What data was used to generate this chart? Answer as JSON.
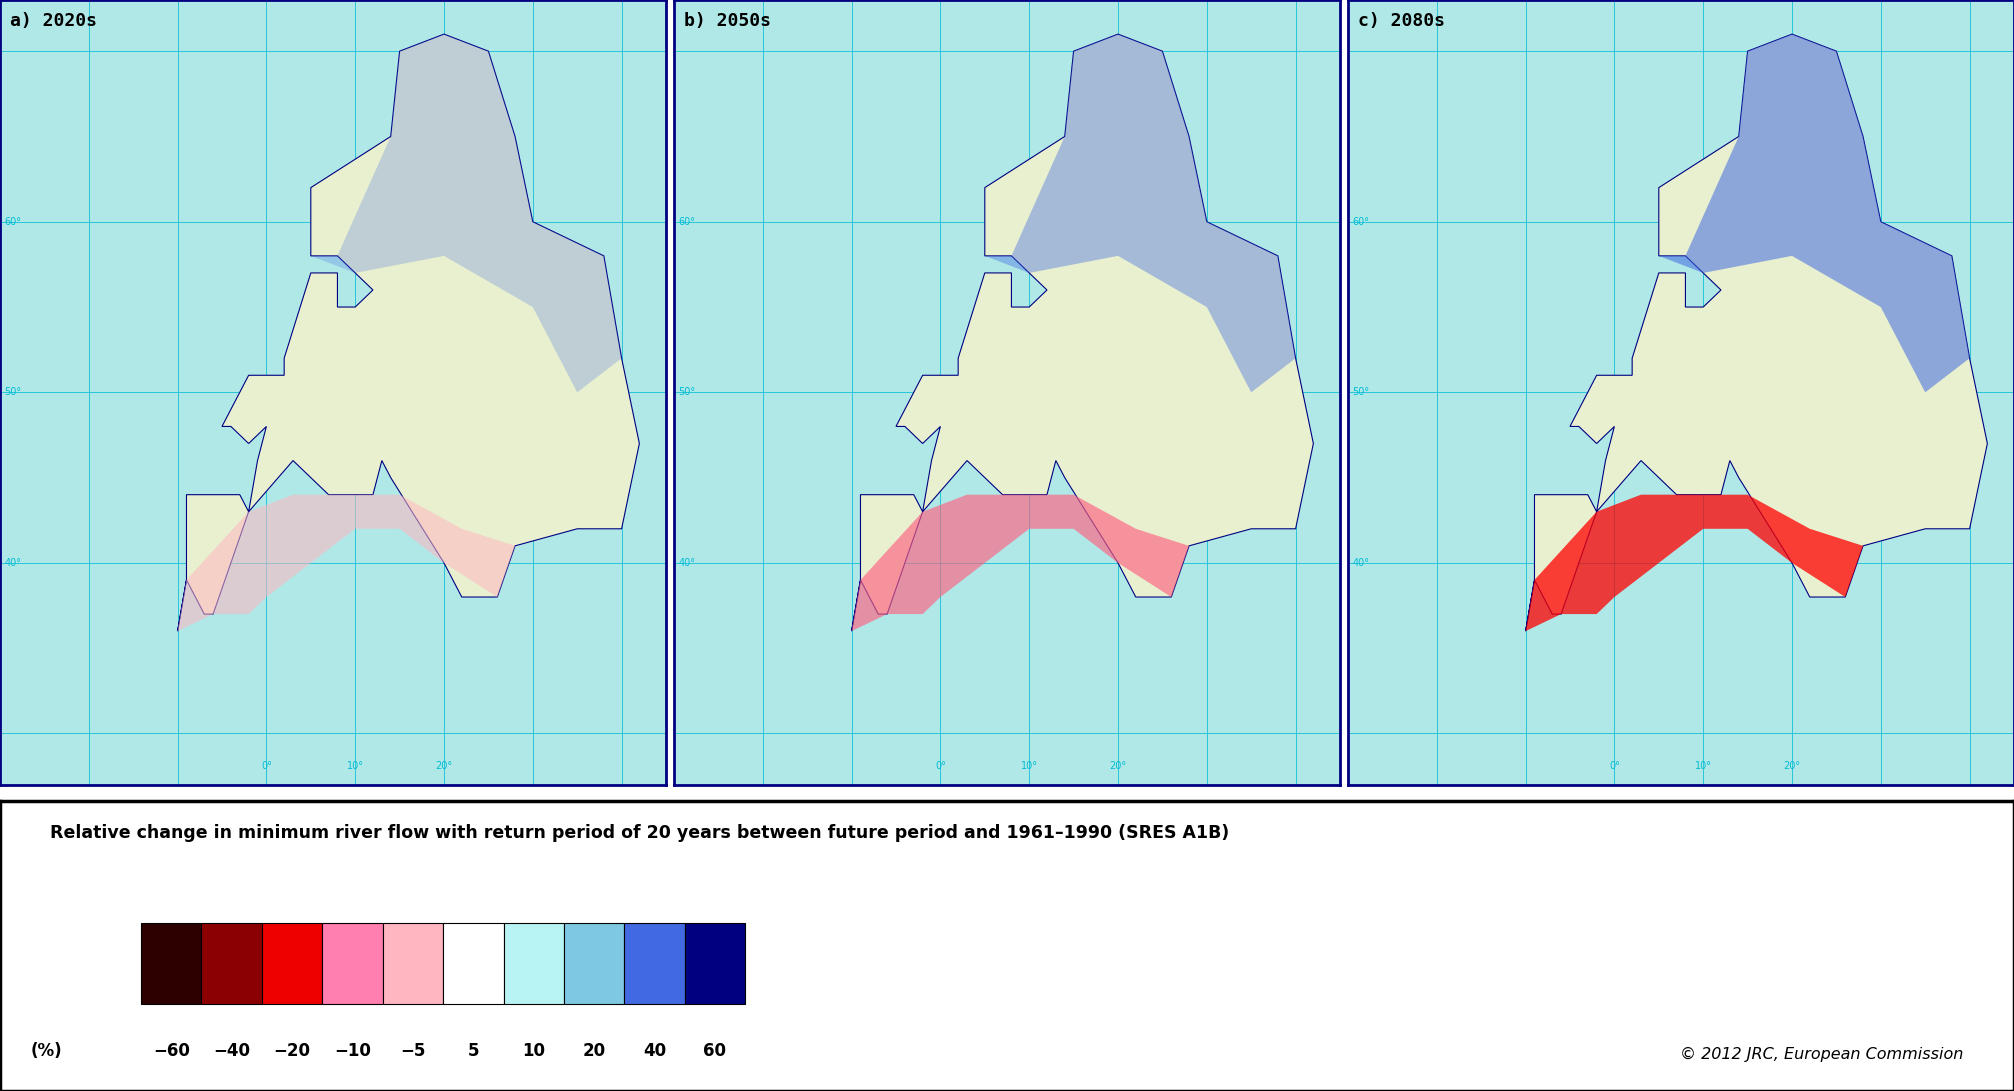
{
  "panel_labels": [
    "a) 2020s",
    "b) 2050s",
    "c) 2080s"
  ],
  "legend_title": "Relative change in minimum river flow with return period of 20 years between future period and 1961–1990 (SRES A1B)",
  "colorbar_colors": [
    "#2d0000",
    "#8b0000",
    "#ee0000",
    "#ff80b0",
    "#ffb6c1",
    "#ffffff",
    "#b8f4f4",
    "#7ec8e3",
    "#4169e1",
    "#000080"
  ],
  "colorbar_labels": [
    "−60",
    "−40",
    "−20",
    "−10",
    "−5",
    "5",
    "10",
    "20",
    "40",
    "60"
  ],
  "colorbar_unit": "(%)",
  "copyright_text": "© 2012 JRC, European Commission",
  "map_bg_color": "#b0e8e8",
  "legend_box_bg": "#ffffff",
  "legend_box_border": "#000000",
  "fig_bg_color": "#ffffff",
  "grid_color": "#00bcd4",
  "border_color": "#000080",
  "land_color": "#e8f0d0"
}
